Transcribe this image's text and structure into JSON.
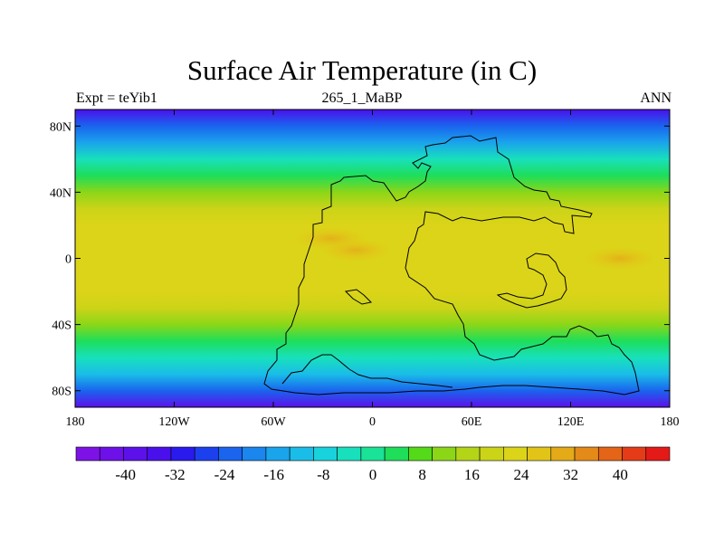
{
  "title": "Surface Air Temperature (in C)",
  "left_subtitle": "Expt = teYib1",
  "center_subtitle": "265_1_MaBP",
  "right_subtitle": "ANN",
  "lon_ticks": [
    {
      "value": -180,
      "label": "180"
    },
    {
      "value": -120,
      "label": "120W"
    },
    {
      "value": -60,
      "label": "60W"
    },
    {
      "value": 0,
      "label": "0"
    },
    {
      "value": 60,
      "label": "60E"
    },
    {
      "value": 120,
      "label": "120E"
    },
    {
      "value": 180,
      "label": "180"
    }
  ],
  "lat_ticks": [
    {
      "value": 80,
      "label": "80N"
    },
    {
      "value": 40,
      "label": "40N"
    },
    {
      "value": 0,
      "label": "0"
    },
    {
      "value": -40,
      "label": "40S"
    },
    {
      "value": -80,
      "label": "80S"
    }
  ],
  "lon_range": [
    -180,
    180
  ],
  "lat_range": [
    -90,
    90
  ],
  "colorbar": {
    "colors": [
      "#7d12e6",
      "#6e10e8",
      "#5c10ea",
      "#4a10ec",
      "#2a1aee",
      "#1c40ee",
      "#1a64ee",
      "#1a86ee",
      "#1aa4ec",
      "#1abde8",
      "#18d2dc",
      "#18e0bc",
      "#1ae296",
      "#1ede5a",
      "#54da18",
      "#8cd618",
      "#b4d418",
      "#ccd418",
      "#dcd418",
      "#e2c418",
      "#e4aa18",
      "#e48a18",
      "#e46418",
      "#e43c18",
      "#e41a18"
    ],
    "labels": [
      {
        "value": -40,
        "label": "-40"
      },
      {
        "value": -32,
        "label": "-32"
      },
      {
        "value": -24,
        "label": "-24"
      },
      {
        "value": -16,
        "label": "-16"
      },
      {
        "value": -8,
        "label": "-8"
      },
      {
        "value": 0,
        "label": "0"
      },
      {
        "value": 8,
        "label": "8"
      },
      {
        "value": 16,
        "label": "16"
      },
      {
        "value": 24,
        "label": "24"
      },
      {
        "value": 32,
        "label": "32"
      },
      {
        "value": 40,
        "label": "40"
      }
    ]
  },
  "field": {
    "lat_profile_degC": [
      [
        90,
        -34
      ],
      [
        80,
        -24
      ],
      [
        70,
        -14
      ],
      [
        60,
        -4
      ],
      [
        50,
        4
      ],
      [
        40,
        12
      ],
      [
        30,
        18
      ],
      [
        20,
        22
      ],
      [
        10,
        24
      ],
      [
        0,
        24
      ],
      [
        -10,
        24
      ],
      [
        -20,
        22
      ],
      [
        -30,
        19
      ],
      [
        -40,
        13
      ],
      [
        -50,
        4
      ],
      [
        -60,
        -4
      ],
      [
        -70,
        -12
      ],
      [
        -80,
        -22
      ],
      [
        -90,
        -40
      ]
    ],
    "warm_patches": [
      {
        "lon": -10,
        "lat": 5,
        "value": 27
      },
      {
        "lon": -25,
        "lat": 12,
        "value": 26
      },
      {
        "lon": 150,
        "lat": 0,
        "value": 27
      }
    ]
  }
}
